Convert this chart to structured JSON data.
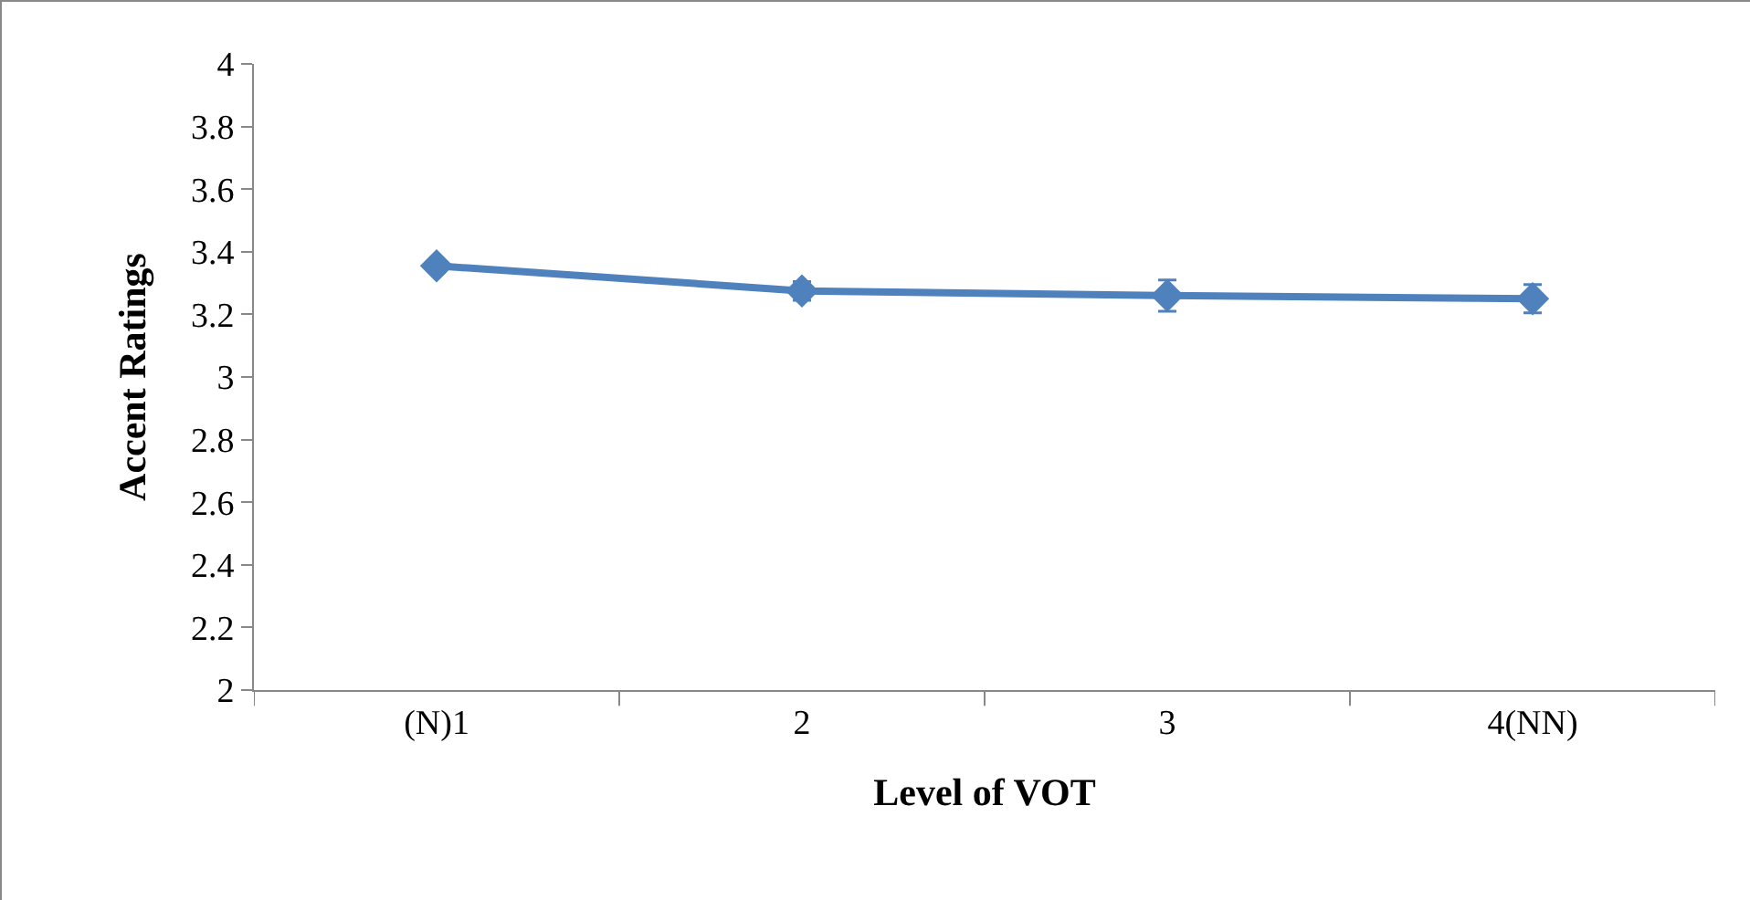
{
  "chart_data": {
    "type": "line",
    "xlabel": "Level of VOT",
    "ylabel": "Accent Ratings",
    "categories": [
      "(N)1",
      "2",
      "3",
      "4(NN)"
    ],
    "series": [
      {
        "color": "#4f81bd",
        "values": [
          3.355,
          3.275,
          3.26,
          3.25
        ],
        "errors": [
          0.02,
          0.03,
          0.05,
          0.045
        ]
      }
    ],
    "ylim": [
      2,
      4
    ],
    "yticks": [
      2,
      2.2,
      2.4,
      2.6,
      2.8,
      3,
      3.2,
      3.4,
      3.6,
      3.8,
      4
    ],
    "grid": false,
    "marker": "diamond",
    "line_style": "solid"
  }
}
